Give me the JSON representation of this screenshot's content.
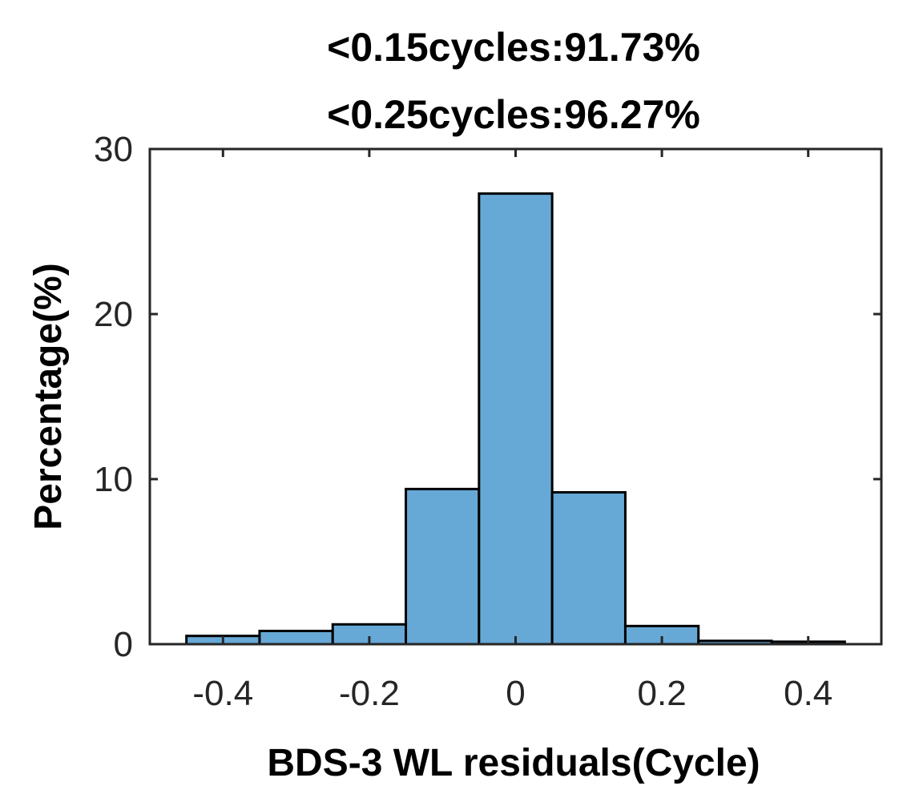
{
  "chart_data": {
    "type": "bar",
    "title_lines": [
      "<0.15cycles:91.73%",
      "<0.25cycles:96.27%"
    ],
    "xlabel": "BDS-3 WL residuals(Cycle)",
    "ylabel": "Percentage(%)",
    "xlim": [
      -0.5,
      0.5
    ],
    "ylim": [
      0,
      30
    ],
    "xticks": [
      -0.4,
      -0.2,
      0,
      0.2,
      0.4
    ],
    "xtick_labels": [
      "-0.4",
      "-0.2",
      "0",
      "0.2",
      "0.4"
    ],
    "yticks": [
      0,
      10,
      20,
      30
    ],
    "ytick_labels": [
      "0",
      "10",
      "20",
      "30"
    ],
    "bin_edges": [
      -0.45,
      -0.35,
      -0.25,
      -0.15,
      -0.05,
      0.05,
      0.15,
      0.25,
      0.35,
      0.45
    ],
    "values": [
      0.5,
      0.8,
      1.2,
      9.4,
      27.3,
      9.2,
      1.1,
      0.2,
      0.15
    ],
    "bar_color": "#67a9d6",
    "edge_color": "#000000",
    "grid": false
  }
}
